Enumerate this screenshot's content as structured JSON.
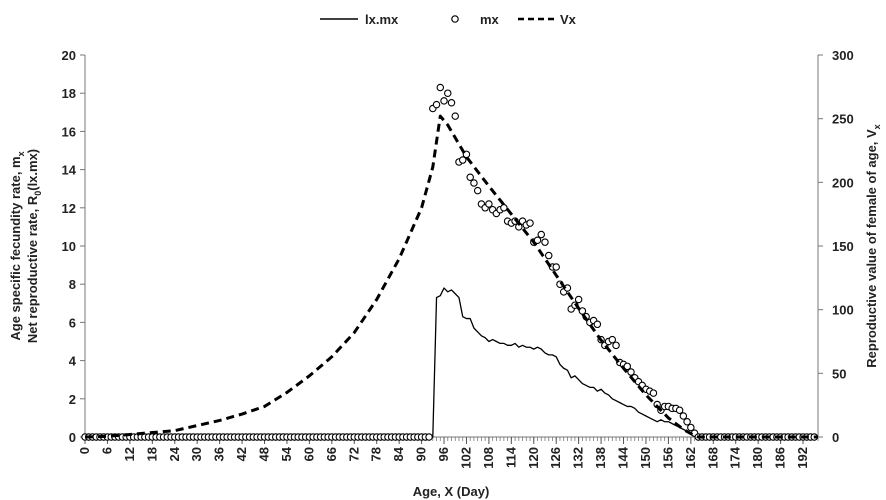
{
  "chart_data": {
    "type": "line",
    "legend_position": "top-center",
    "grid": false,
    "xlabel": "Age, X (Day)",
    "ylabel_left": [
      "Age specific fecundity rate, m",
      "x",
      "Net reproductive rate, R",
      "0",
      "(lx.mx)"
    ],
    "ylabel_right": [
      "Reproductive value of female of age, V",
      "x"
    ],
    "xlim": [
      0,
      196
    ],
    "ylim_left": [
      0,
      20
    ],
    "ylim_right": [
      0,
      300
    ],
    "x_ticks": [
      "0",
      "6",
      "12",
      "18",
      "24",
      "30",
      "36",
      "42",
      "48",
      "54",
      "60",
      "66",
      "72",
      "78",
      "84",
      "90",
      "96",
      "102",
      "108",
      "114",
      "120",
      "126",
      "132",
      "138",
      "144",
      "150",
      "156",
      "162",
      "168",
      "174",
      "180",
      "186",
      "192"
    ],
    "y_ticks_left": [
      "0",
      "2",
      "4",
      "6",
      "8",
      "10",
      "12",
      "14",
      "16",
      "18",
      "20"
    ],
    "y_ticks_right": [
      "0",
      "50",
      "100",
      "150",
      "200",
      "250",
      "300"
    ],
    "series": [
      {
        "name": "lx.mx",
        "axis": "left",
        "style": "solid",
        "color": "#000000",
        "points": [
          [
            0,
            0
          ],
          [
            93,
            0
          ],
          [
            94,
            7.3
          ],
          [
            95,
            7.4
          ],
          [
            96,
            7.8
          ],
          [
            97,
            7.6
          ],
          [
            98,
            7.7
          ],
          [
            99,
            7.5
          ],
          [
            100,
            7.3
          ],
          [
            101,
            6.3
          ],
          [
            102,
            6.2
          ],
          [
            103,
            6.2
          ],
          [
            104,
            5.7
          ],
          [
            105,
            5.5
          ],
          [
            106,
            5.3
          ],
          [
            107,
            5.2
          ],
          [
            108,
            5.0
          ],
          [
            109,
            5.1
          ],
          [
            110,
            5.0
          ],
          [
            111,
            4.9
          ],
          [
            112,
            4.9
          ],
          [
            113,
            4.8
          ],
          [
            114,
            4.8
          ],
          [
            115,
            4.9
          ],
          [
            116,
            4.7
          ],
          [
            117,
            4.8
          ],
          [
            118,
            4.7
          ],
          [
            119,
            4.7
          ],
          [
            120,
            4.6
          ],
          [
            121,
            4.7
          ],
          [
            122,
            4.6
          ],
          [
            123,
            4.4
          ],
          [
            124,
            4.3
          ],
          [
            125,
            4.3
          ],
          [
            126,
            4.2
          ],
          [
            127,
            3.8
          ],
          [
            128,
            3.6
          ],
          [
            129,
            3.5
          ],
          [
            130,
            3.1
          ],
          [
            131,
            3.2
          ],
          [
            132,
            3.0
          ],
          [
            133,
            2.8
          ],
          [
            134,
            2.7
          ],
          [
            135,
            2.6
          ],
          [
            136,
            2.6
          ],
          [
            137,
            2.4
          ],
          [
            138,
            2.5
          ],
          [
            139,
            2.3
          ],
          [
            140,
            2.2
          ],
          [
            141,
            2.0
          ],
          [
            142,
            1.9
          ],
          [
            143,
            1.8
          ],
          [
            144,
            1.7
          ],
          [
            145,
            1.6
          ],
          [
            146,
            1.6
          ],
          [
            147,
            1.5
          ],
          [
            148,
            1.3
          ],
          [
            149,
            1.2
          ],
          [
            150,
            1.1
          ],
          [
            151,
            1.0
          ],
          [
            152,
            0.9
          ],
          [
            153,
            0.8
          ],
          [
            154,
            0.9
          ],
          [
            155,
            0.8
          ],
          [
            156,
            0.8
          ],
          [
            157,
            0.7
          ],
          [
            158,
            0.6
          ],
          [
            159,
            0.5
          ],
          [
            160,
            0.4
          ],
          [
            161,
            0.3
          ],
          [
            162,
            0.2
          ],
          [
            163,
            0.1
          ],
          [
            164,
            0.05
          ],
          [
            165,
            0
          ],
          [
            196,
            0
          ]
        ]
      },
      {
        "name": "mx",
        "axis": "left",
        "style": "markers",
        "marker": "open-circle",
        "color": "#000000",
        "points": [
          [
            0,
            0
          ],
          [
            1,
            0
          ],
          [
            2,
            0
          ],
          [
            3,
            0
          ],
          [
            4,
            0
          ],
          [
            5,
            0
          ],
          [
            6,
            0
          ],
          [
            7,
            0
          ],
          [
            8,
            0
          ],
          [
            9,
            0
          ],
          [
            10,
            0
          ],
          [
            11,
            0
          ],
          [
            12,
            0
          ],
          [
            13,
            0
          ],
          [
            14,
            0
          ],
          [
            15,
            0
          ],
          [
            16,
            0
          ],
          [
            17,
            0
          ],
          [
            18,
            0
          ],
          [
            19,
            0
          ],
          [
            20,
            0
          ],
          [
            21,
            0
          ],
          [
            22,
            0
          ],
          [
            23,
            0
          ],
          [
            24,
            0
          ],
          [
            25,
            0
          ],
          [
            26,
            0
          ],
          [
            27,
            0
          ],
          [
            28,
            0
          ],
          [
            29,
            0
          ],
          [
            30,
            0
          ],
          [
            31,
            0
          ],
          [
            32,
            0
          ],
          [
            33,
            0
          ],
          [
            34,
            0
          ],
          [
            35,
            0
          ],
          [
            36,
            0
          ],
          [
            37,
            0
          ],
          [
            38,
            0
          ],
          [
            39,
            0
          ],
          [
            40,
            0
          ],
          [
            41,
            0
          ],
          [
            42,
            0
          ],
          [
            43,
            0
          ],
          [
            44,
            0
          ],
          [
            45,
            0
          ],
          [
            46,
            0
          ],
          [
            47,
            0
          ],
          [
            48,
            0
          ],
          [
            49,
            0
          ],
          [
            50,
            0
          ],
          [
            51,
            0
          ],
          [
            52,
            0
          ],
          [
            53,
            0
          ],
          [
            54,
            0
          ],
          [
            55,
            0
          ],
          [
            56,
            0
          ],
          [
            57,
            0
          ],
          [
            58,
            0
          ],
          [
            59,
            0
          ],
          [
            60,
            0
          ],
          [
            61,
            0
          ],
          [
            62,
            0
          ],
          [
            63,
            0
          ],
          [
            64,
            0
          ],
          [
            65,
            0
          ],
          [
            66,
            0
          ],
          [
            67,
            0
          ],
          [
            68,
            0
          ],
          [
            69,
            0
          ],
          [
            70,
            0
          ],
          [
            71,
            0
          ],
          [
            72,
            0
          ],
          [
            73,
            0
          ],
          [
            74,
            0
          ],
          [
            75,
            0
          ],
          [
            76,
            0
          ],
          [
            77,
            0
          ],
          [
            78,
            0
          ],
          [
            79,
            0
          ],
          [
            80,
            0
          ],
          [
            81,
            0
          ],
          [
            82,
            0
          ],
          [
            83,
            0
          ],
          [
            84,
            0
          ],
          [
            85,
            0
          ],
          [
            86,
            0
          ],
          [
            87,
            0
          ],
          [
            88,
            0
          ],
          [
            89,
            0
          ],
          [
            90,
            0
          ],
          [
            91,
            0
          ],
          [
            92,
            0
          ],
          [
            93,
            17.2
          ],
          [
            94,
            17.4
          ],
          [
            95,
            18.3
          ],
          [
            96,
            17.6
          ],
          [
            97,
            18.0
          ],
          [
            98,
            17.5
          ],
          [
            99,
            16.8
          ],
          [
            100,
            14.4
          ],
          [
            101,
            14.5
          ],
          [
            102,
            14.8
          ],
          [
            103,
            13.6
          ],
          [
            104,
            13.3
          ],
          [
            105,
            12.9
          ],
          [
            106,
            12.2
          ],
          [
            107,
            12.0
          ],
          [
            108,
            12.2
          ],
          [
            109,
            11.9
          ],
          [
            110,
            11.7
          ],
          [
            111,
            11.9
          ],
          [
            112,
            12.0
          ],
          [
            113,
            11.3
          ],
          [
            114,
            11.2
          ],
          [
            115,
            11.3
          ],
          [
            116,
            11.0
          ],
          [
            117,
            11.3
          ],
          [
            118,
            11.1
          ],
          [
            119,
            11.2
          ],
          [
            120,
            10.2
          ],
          [
            121,
            10.3
          ],
          [
            122,
            10.6
          ],
          [
            123,
            10.2
          ],
          [
            124,
            9.5
          ],
          [
            125,
            8.9
          ],
          [
            126,
            8.9
          ],
          [
            127,
            8.0
          ],
          [
            128,
            7.6
          ],
          [
            129,
            7.8
          ],
          [
            130,
            6.7
          ],
          [
            131,
            6.9
          ],
          [
            132,
            7.2
          ],
          [
            133,
            6.6
          ],
          [
            134,
            6.3
          ],
          [
            135,
            6.0
          ],
          [
            136,
            6.1
          ],
          [
            137,
            5.9
          ],
          [
            138,
            5.1
          ],
          [
            139,
            4.8
          ],
          [
            140,
            5.0
          ],
          [
            141,
            5.1
          ],
          [
            142,
            4.8
          ],
          [
            143,
            3.9
          ],
          [
            144,
            3.8
          ],
          [
            145,
            3.7
          ],
          [
            146,
            3.4
          ],
          [
            147,
            3.1
          ],
          [
            148,
            2.9
          ],
          [
            149,
            2.7
          ],
          [
            150,
            2.5
          ],
          [
            151,
            2.4
          ],
          [
            152,
            2.3
          ],
          [
            153,
            1.7
          ],
          [
            154,
            1.4
          ],
          [
            155,
            1.6
          ],
          [
            156,
            1.6
          ],
          [
            157,
            1.5
          ],
          [
            158,
            1.5
          ],
          [
            159,
            1.4
          ],
          [
            160,
            1.1
          ],
          [
            161,
            0.8
          ],
          [
            162,
            0.5
          ],
          [
            163,
            0.2
          ],
          [
            164,
            0
          ],
          [
            165,
            0
          ],
          [
            166,
            0
          ],
          [
            167,
            0
          ],
          [
            168,
            0
          ],
          [
            169,
            0
          ],
          [
            170,
            0
          ],
          [
            171,
            0
          ],
          [
            172,
            0
          ],
          [
            173,
            0
          ],
          [
            174,
            0
          ],
          [
            175,
            0
          ],
          [
            176,
            0
          ],
          [
            177,
            0
          ],
          [
            178,
            0
          ],
          [
            179,
            0
          ],
          [
            180,
            0
          ],
          [
            181,
            0
          ],
          [
            182,
            0
          ],
          [
            183,
            0
          ],
          [
            184,
            0
          ],
          [
            185,
            0
          ],
          [
            186,
            0
          ],
          [
            187,
            0
          ],
          [
            188,
            0
          ],
          [
            189,
            0
          ],
          [
            190,
            0
          ],
          [
            191,
            0
          ],
          [
            192,
            0
          ],
          [
            193,
            0
          ],
          [
            194,
            0
          ],
          [
            195,
            0
          ]
        ]
      },
      {
        "name": "Vx",
        "axis": "right",
        "style": "dashed",
        "color": "#000000",
        "points": [
          [
            0,
            0
          ],
          [
            6,
            0.5
          ],
          [
            12,
            2
          ],
          [
            18,
            3.5
          ],
          [
            24,
            5
          ],
          [
            30,
            9
          ],
          [
            36,
            13
          ],
          [
            42,
            18
          ],
          [
            48,
            24
          ],
          [
            54,
            35
          ],
          [
            60,
            48
          ],
          [
            66,
            63
          ],
          [
            72,
            82
          ],
          [
            78,
            108
          ],
          [
            84,
            140
          ],
          [
            90,
            180
          ],
          [
            93,
            212
          ],
          [
            95,
            252
          ],
          [
            97,
            245
          ],
          [
            102,
            220
          ],
          [
            108,
            197
          ],
          [
            114,
            175
          ],
          [
            120,
            153
          ],
          [
            126,
            127
          ],
          [
            132,
            101
          ],
          [
            138,
            76
          ],
          [
            144,
            54
          ],
          [
            150,
            33
          ],
          [
            156,
            15
          ],
          [
            160,
            6
          ],
          [
            163,
            1
          ],
          [
            164,
            0
          ],
          [
            196,
            0
          ]
        ]
      }
    ]
  }
}
